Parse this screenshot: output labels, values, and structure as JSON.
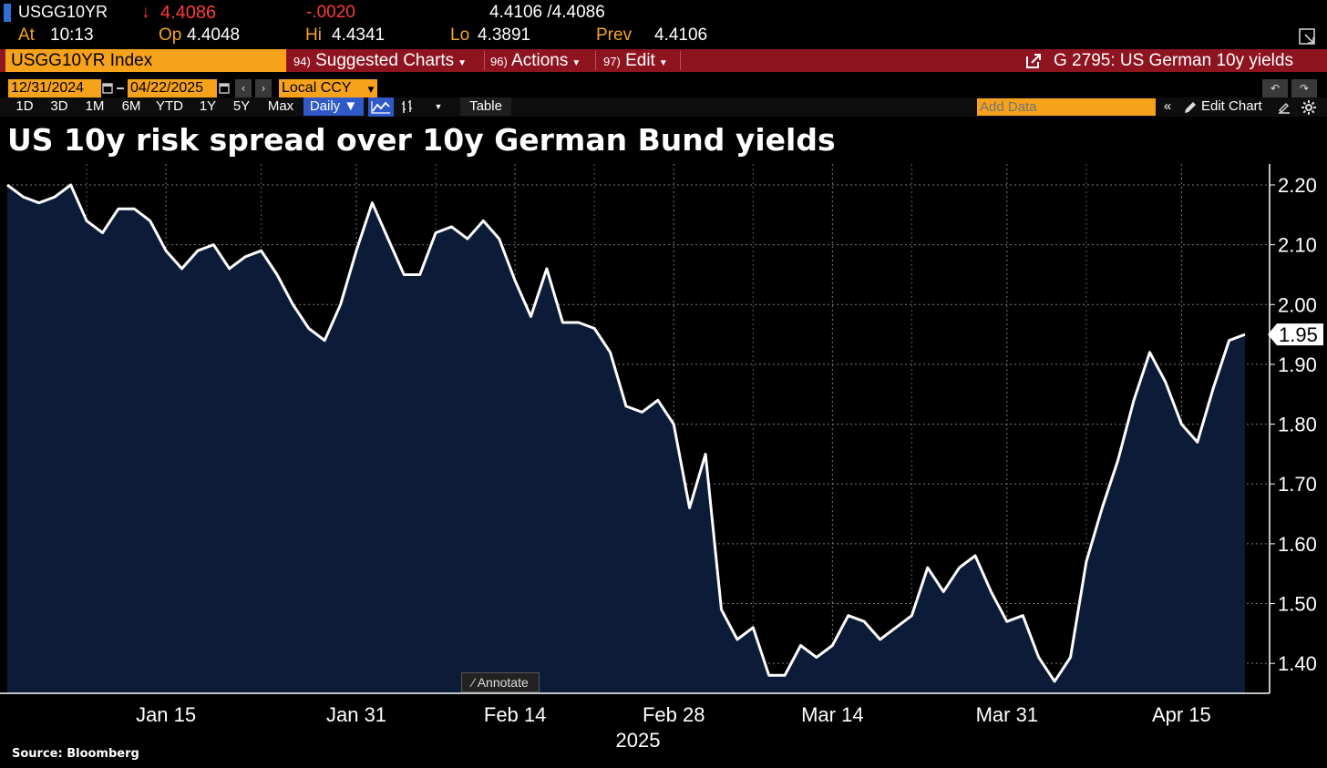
{
  "quote": {
    "ticker": "USGG10YR",
    "last_arrow": "↓",
    "last": "4.4086",
    "change": "-.0020",
    "bid_ask": "4.4106 /4.4086",
    "at_label": "At",
    "at_time": "10:13",
    "op_label": "Op",
    "op_value": "4.4048",
    "hi_label": "Hi",
    "hi_value": "4.4341",
    "lo_label": "Lo",
    "lo_value": "4.3891",
    "prev_label": "Prev",
    "prev_value": "4.4106"
  },
  "toolbar": {
    "security": "USGG10YR Index",
    "suggested_num": "94)",
    "suggested": "Suggested Charts",
    "actions_num": "96)",
    "actions": "Actions",
    "edit_num": "97)",
    "edit": "Edit",
    "chart_name": "G 2795: US German 10y yields"
  },
  "dates": {
    "start": "12/31/2024",
    "end": "04/22/2025",
    "currency": "Local CCY"
  },
  "periods": [
    "1D",
    "3D",
    "1M",
    "6M",
    "YTD",
    "1Y",
    "5Y",
    "Max"
  ],
  "frequency": "Daily ▼",
  "table_label": "Table",
  "add_data_placeholder": "Add Data",
  "edit_chart_label": "Edit Chart",
  "annotate_label": "Annotate",
  "source_label": "Source: Bloomberg",
  "colors": {
    "accent_orange": "#f7a21b",
    "menu_red": "#8e1420",
    "line": "#ffffff",
    "area_fill": "#0c1c38"
  },
  "chart_data": {
    "type": "area",
    "title": "US 10y risk spread over 10y German Bund yields",
    "year_label": "2025",
    "x_ticks": [
      "Jan 15",
      "Jan 31",
      "Feb 14",
      "Feb 28",
      "Mar 14",
      "Mar 31",
      "Apr 15"
    ],
    "y_ticks": [
      "2.20",
      "2.10",
      "2.00",
      "1.90",
      "1.80",
      "1.70",
      "1.60",
      "1.50",
      "1.40"
    ],
    "ylim": [
      1.35,
      2.235
    ],
    "last_value_label": "1.95",
    "grid": true,
    "series": [
      {
        "values": [
          2.2,
          2.18,
          2.17,
          2.18,
          2.2,
          2.14,
          2.12,
          2.16,
          2.16,
          2.14,
          2.09,
          2.06,
          2.09,
          2.1,
          2.06,
          2.08,
          2.09,
          2.05,
          2.0,
          1.96,
          1.94,
          2.0,
          2.09,
          2.17,
          2.11,
          2.05,
          2.05,
          2.12,
          2.13,
          2.11,
          2.14,
          2.11,
          2.04,
          1.98,
          2.06,
          1.97,
          1.97,
          1.96,
          1.92,
          1.83,
          1.82,
          1.84,
          1.8,
          1.66,
          1.75,
          1.49,
          1.44,
          1.46,
          1.38,
          1.38,
          1.43,
          1.41,
          1.43,
          1.48,
          1.47,
          1.44,
          1.46,
          1.48,
          1.56,
          1.52,
          1.56,
          1.58,
          1.52,
          1.47,
          1.48,
          1.41,
          1.37,
          1.41,
          1.57,
          1.66,
          1.74,
          1.84,
          1.92,
          1.87,
          1.8,
          1.77,
          1.86,
          1.94,
          1.95
        ]
      }
    ]
  }
}
